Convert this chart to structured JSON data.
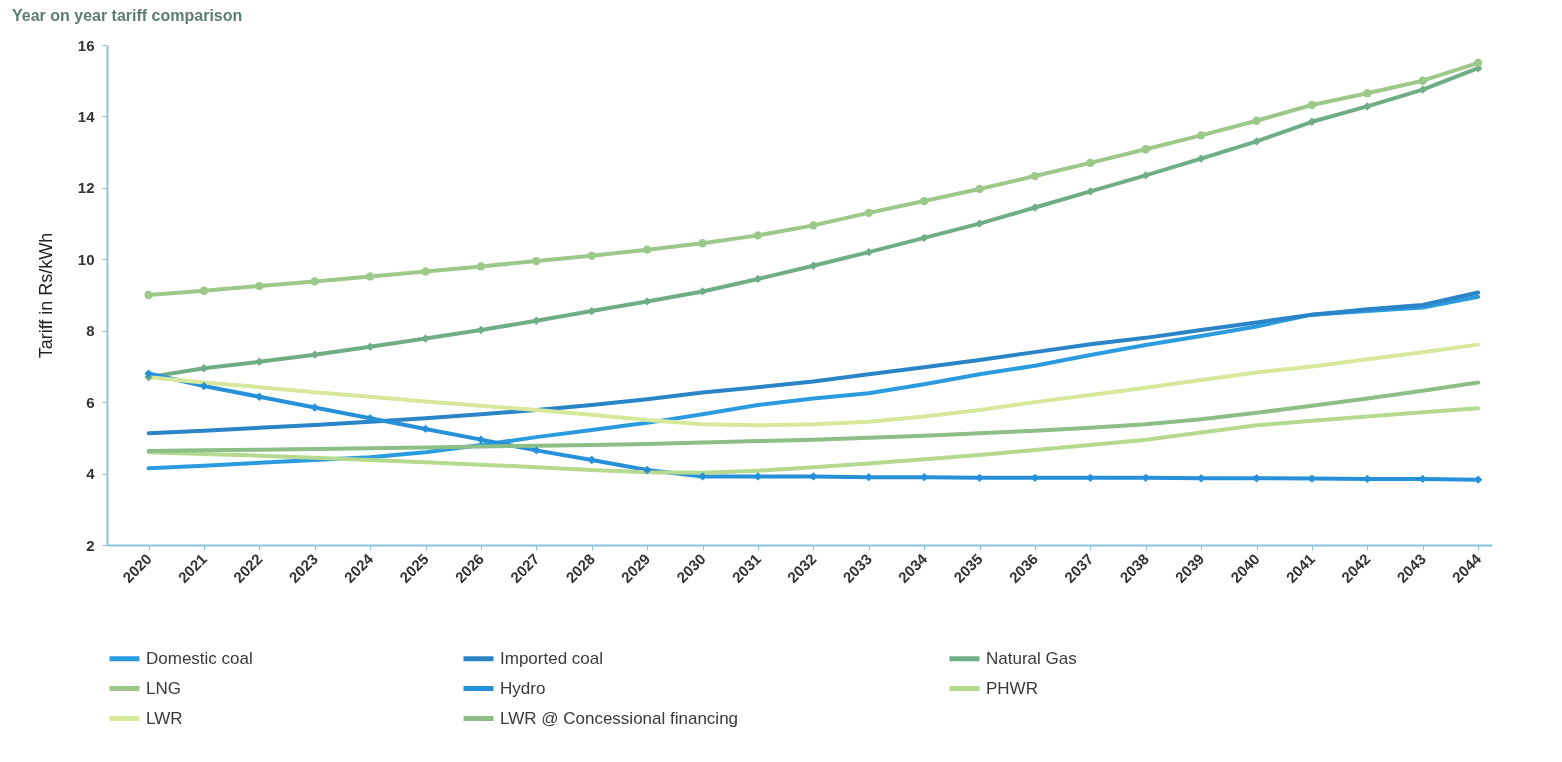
{
  "chart_data": {
    "type": "line",
    "title": "Year on year tariff comparison",
    "ylabel": "Tariff in Rs/kWh",
    "categories": [
      "2020",
      "2021",
      "2022",
      "2023",
      "2024",
      "2025",
      "2026",
      "2027",
      "2028",
      "2029",
      "2030",
      "2031",
      "2032",
      "2033",
      "2034",
      "2035",
      "2036",
      "2037",
      "2038",
      "2039",
      "2040",
      "2041",
      "2042",
      "2043",
      "2044"
    ],
    "ylim": [
      2,
      16
    ],
    "yticks": [
      2,
      4,
      6,
      8,
      10,
      12,
      14,
      16
    ],
    "grid": false,
    "legend": "bottom",
    "series": [
      {
        "name": "Domestic coal",
        "color": "#2b9be0",
        "marker": "none",
        "values": [
          4.15,
          4.22,
          4.3,
          4.38,
          4.46,
          4.6,
          4.8,
          5.02,
          5.22,
          5.42,
          5.66,
          5.92,
          6.1,
          6.25,
          6.5,
          6.78,
          7.02,
          7.32,
          7.6,
          7.85,
          8.12,
          8.45,
          8.55,
          8.65,
          8.95
        ]
      },
      {
        "name": "Imported coal",
        "color": "#2a84c6",
        "marker": "none",
        "values": [
          5.13,
          5.2,
          5.28,
          5.36,
          5.45,
          5.55,
          5.66,
          5.78,
          5.92,
          6.08,
          6.27,
          6.42,
          6.58,
          6.78,
          6.98,
          7.18,
          7.4,
          7.62,
          7.8,
          8.02,
          8.23,
          8.45,
          8.6,
          8.72,
          9.07
        ]
      },
      {
        "name": "Natural Gas",
        "color": "#6fae84",
        "marker": "diamond",
        "values": [
          6.7,
          6.95,
          7.13,
          7.33,
          7.55,
          7.78,
          8.02,
          8.28,
          8.55,
          8.82,
          9.1,
          9.45,
          9.82,
          10.2,
          10.6,
          11.0,
          11.45,
          11.9,
          12.35,
          12.82,
          13.3,
          13.85,
          14.28,
          14.75,
          15.35
        ]
      },
      {
        "name": "LNG",
        "color": "#9cc98a",
        "marker": "circle",
        "values": [
          9.0,
          9.12,
          9.25,
          9.38,
          9.52,
          9.66,
          9.8,
          9.95,
          10.1,
          10.27,
          10.45,
          10.67,
          10.95,
          11.3,
          11.63,
          11.97,
          12.33,
          12.7,
          13.08,
          13.47,
          13.88,
          14.32,
          14.65,
          15.0,
          15.5
        ]
      },
      {
        "name": "Hydro",
        "color": "#2691d9",
        "marker": "diamond",
        "values": [
          6.8,
          6.45,
          6.15,
          5.85,
          5.55,
          5.25,
          4.95,
          4.65,
          4.38,
          4.1,
          3.92,
          3.92,
          3.92,
          3.9,
          3.9,
          3.88,
          3.88,
          3.88,
          3.88,
          3.87,
          3.87,
          3.86,
          3.85,
          3.85,
          3.83
        ]
      },
      {
        "name": "PHWR",
        "color": "#b5d98f",
        "marker": "none",
        "values": [
          4.6,
          4.55,
          4.5,
          4.44,
          4.38,
          4.32,
          4.25,
          4.18,
          4.1,
          4.04,
          4.02,
          4.08,
          4.18,
          4.28,
          4.4,
          4.52,
          4.66,
          4.8,
          4.95,
          5.15,
          5.35,
          5.48,
          5.6,
          5.72,
          5.83
        ]
      },
      {
        "name": "LWR",
        "color": "#d6e89a",
        "marker": "none",
        "values": [
          6.7,
          6.55,
          6.42,
          6.28,
          6.15,
          6.02,
          5.9,
          5.78,
          5.65,
          5.5,
          5.38,
          5.35,
          5.38,
          5.45,
          5.6,
          5.78,
          6.0,
          6.2,
          6.4,
          6.62,
          6.83,
          7.0,
          7.2,
          7.4,
          7.61
        ]
      },
      {
        "name": "LWR @ Concessional financing",
        "color": "#8cbf86",
        "marker": "none",
        "values": [
          4.63,
          4.65,
          4.67,
          4.69,
          4.71,
          4.73,
          4.76,
          4.78,
          4.8,
          4.83,
          4.87,
          4.91,
          4.95,
          5.0,
          5.06,
          5.13,
          5.2,
          5.28,
          5.38,
          5.52,
          5.7,
          5.9,
          6.1,
          6.32,
          6.55
        ]
      }
    ]
  }
}
